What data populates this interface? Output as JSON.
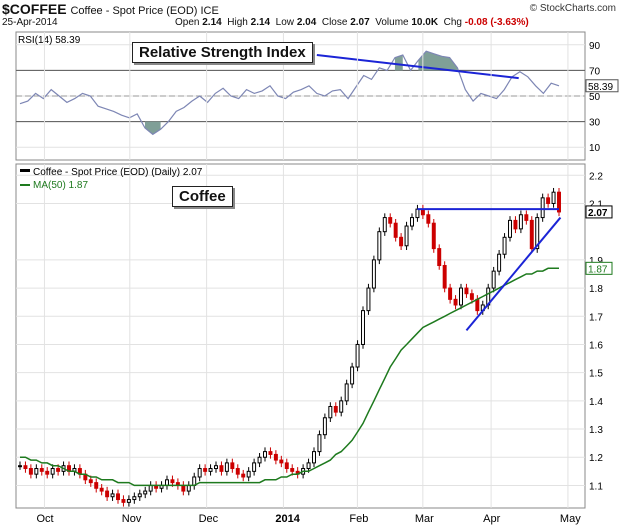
{
  "header": {
    "symbol": "$COFFEE",
    "description": "Coffee - Spot Price (EOD) ICE",
    "date": "25-Apr-2014",
    "brand": "© StockCharts.com",
    "quote": {
      "open_label": "Open",
      "open": "2.14",
      "high_label": "High",
      "high": "2.14",
      "low_label": "Low",
      "low": "2.04",
      "close_label": "Close",
      "close": "2.07",
      "volume_label": "Volume",
      "volume": "10.0K",
      "chg_label": "Chg",
      "chg": "-0.08 (-3.63%)",
      "chg_color": "#cc0000"
    }
  },
  "annotations": {
    "rsi_callout": "Relative Strength Index",
    "price_callout": "Coffee"
  },
  "chart_data": [
    {
      "type": "line",
      "panel": "RSI",
      "legend": "RSI(14) 58.39",
      "ylim": [
        0,
        100
      ],
      "yticks": [
        "10",
        "30",
        "50",
        "70",
        "90"
      ],
      "reference_lines": [
        30,
        50,
        70
      ],
      "last_value_label": "58.39",
      "series": [
        {
          "name": "RSI(14)",
          "values": [
            44,
            46,
            52,
            48,
            55,
            50,
            45,
            48,
            52,
            50,
            42,
            40,
            38,
            35,
            33,
            36,
            25,
            20,
            24,
            30,
            38,
            41,
            46,
            50,
            45,
            52,
            56,
            50,
            48,
            55,
            52,
            54,
            58,
            50,
            48,
            53,
            55,
            58,
            52,
            50,
            54,
            55,
            48,
            57,
            66,
            63,
            72,
            70,
            80,
            82,
            70,
            78,
            85,
            83,
            81,
            80,
            72,
            55,
            46,
            52,
            50,
            48,
            55,
            65,
            69,
            65,
            58,
            52,
            60,
            58
          ]
        }
      ],
      "trendline": {
        "x": [
          38,
          60
        ],
        "y": [
          82,
          64
        ]
      },
      "color": "#7d86b4",
      "fill_above_70": "#7f9f97",
      "fill_below_30": "#7f9f97"
    },
    {
      "type": "candlestick",
      "panel": "price",
      "legend_price": "Coffee - Spot Price (EOD) (Daily) 2.07",
      "legend_ma": "MA(50) 1.87",
      "xlabels": [
        "Oct",
        "Nov",
        "Dec",
        "2014",
        "Feb",
        "Mar",
        "Apr",
        "May"
      ],
      "yticks": [
        "1.1",
        "1.2",
        "1.3",
        "1.4",
        "1.5",
        "1.6",
        "1.7",
        "1.8",
        "1.9",
        "2.1",
        "2.2"
      ],
      "ylim": [
        1.02,
        2.24
      ],
      "last_price_label": "2.07",
      "ma_label": "1.87",
      "close": [
        1.17,
        1.16,
        1.14,
        1.16,
        1.15,
        1.14,
        1.16,
        1.15,
        1.17,
        1.15,
        1.16,
        1.14,
        1.12,
        1.11,
        1.09,
        1.08,
        1.06,
        1.07,
        1.05,
        1.04,
        1.05,
        1.06,
        1.07,
        1.08,
        1.1,
        1.09,
        1.1,
        1.12,
        1.11,
        1.1,
        1.08,
        1.1,
        1.13,
        1.16,
        1.15,
        1.16,
        1.17,
        1.15,
        1.18,
        1.16,
        1.14,
        1.13,
        1.15,
        1.18,
        1.2,
        1.22,
        1.21,
        1.19,
        1.18,
        1.16,
        1.15,
        1.14,
        1.16,
        1.18,
        1.22,
        1.28,
        1.34,
        1.38,
        1.36,
        1.4,
        1.46,
        1.52,
        1.6,
        1.72,
        1.8,
        1.9,
        2.0,
        2.05,
        2.03,
        1.98,
        1.95,
        2.02,
        2.05,
        2.08,
        2.06,
        2.03,
        1.94,
        1.88,
        1.8,
        1.76,
        1.74,
        1.8,
        1.78,
        1.76,
        1.72,
        1.74,
        1.8,
        1.86,
        1.92,
        1.98,
        2.04,
        2.01,
        2.06,
        2.04,
        1.94,
        2.05,
        2.12,
        2.1,
        2.14,
        2.07
      ],
      "ma50": [
        1.2,
        1.2,
        1.19,
        1.19,
        1.18,
        1.18,
        1.17,
        1.17,
        1.16,
        1.15,
        1.15,
        1.14,
        1.14,
        1.13,
        1.13,
        1.12,
        1.12,
        1.12,
        1.11,
        1.11,
        1.11,
        1.1,
        1.1,
        1.1,
        1.1,
        1.1,
        1.1,
        1.1,
        1.1,
        1.1,
        1.1,
        1.1,
        1.1,
        1.11,
        1.11,
        1.11,
        1.11,
        1.11,
        1.11,
        1.11,
        1.11,
        1.11,
        1.11,
        1.11,
        1.11,
        1.12,
        1.12,
        1.12,
        1.13,
        1.13,
        1.14,
        1.14,
        1.15,
        1.15,
        1.16,
        1.17,
        1.18,
        1.19,
        1.21,
        1.22,
        1.24,
        1.26,
        1.29,
        1.32,
        1.36,
        1.4,
        1.44,
        1.48,
        1.52,
        1.55,
        1.58,
        1.6,
        1.62,
        1.64,
        1.66,
        1.67,
        1.68,
        1.69,
        1.7,
        1.71,
        1.72,
        1.73,
        1.74,
        1.75,
        1.76,
        1.77,
        1.78,
        1.79,
        1.8,
        1.81,
        1.82,
        1.83,
        1.84,
        1.85,
        1.85,
        1.86,
        1.86,
        1.87,
        1.87,
        1.87
      ],
      "resistance_line": {
        "x": [
          73,
          99
        ],
        "y": [
          2.08,
          2.08
        ]
      },
      "support_line": {
        "x": [
          82,
          100
        ],
        "y": [
          1.65,
          2.05
        ]
      },
      "up_color": "#000000",
      "down_color": "#cc0000",
      "ma_color": "#1e7a1e",
      "trendline_color": "#1b24d6"
    }
  ]
}
